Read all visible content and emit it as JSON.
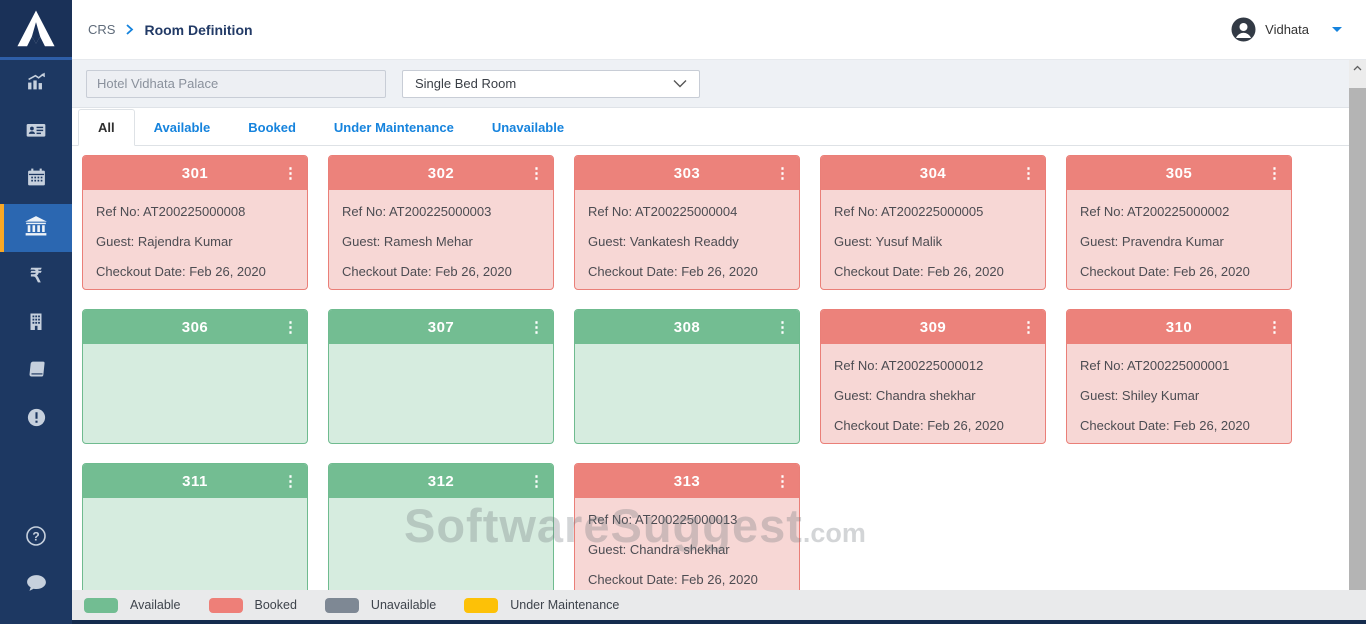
{
  "app": {
    "user_name": "Vidhata"
  },
  "breadcrumb": {
    "root": "CRS",
    "current": "Room Definition"
  },
  "filters": {
    "hotel_placeholder": "Hotel Vidhata Palace",
    "room_type_value": "Single Bed Room"
  },
  "tabs": [
    {
      "label": "All",
      "active": true
    },
    {
      "label": "Available",
      "active": false
    },
    {
      "label": "Booked",
      "active": false
    },
    {
      "label": "Under Maintenance",
      "active": false
    },
    {
      "label": "Unavailable",
      "active": false
    }
  ],
  "sidebar": {
    "items": [
      {
        "name": "dashboard",
        "icon": "analytics-icon",
        "active": false
      },
      {
        "name": "contacts",
        "icon": "id-card-icon",
        "active": false
      },
      {
        "name": "calendar",
        "icon": "calendar-icon",
        "active": false
      },
      {
        "name": "rooms",
        "icon": "bank-icon",
        "active": true
      },
      {
        "name": "payments",
        "icon": "rupee-icon",
        "active": false
      },
      {
        "name": "property",
        "icon": "building-icon",
        "active": false
      },
      {
        "name": "ledger",
        "icon": "book-icon",
        "active": false
      },
      {
        "name": "alerts",
        "icon": "alert-icon",
        "active": false
      }
    ],
    "bottom_items": [
      {
        "name": "help",
        "icon": "help-icon"
      },
      {
        "name": "chat",
        "icon": "chat-icon"
      }
    ]
  },
  "rooms": [
    {
      "number": "301",
      "status": "booked",
      "ref": "Ref No: AT200225000008",
      "guest": "Guest: Rajendra Kumar",
      "checkout": "Checkout Date: Feb 26, 2020"
    },
    {
      "number": "302",
      "status": "booked",
      "ref": "Ref No: AT200225000003",
      "guest": "Guest: Ramesh Mehar",
      "checkout": "Checkout Date: Feb 26, 2020"
    },
    {
      "number": "303",
      "status": "booked",
      "ref": "Ref No: AT200225000004",
      "guest": "Guest: Vankatesh Readdy",
      "checkout": "Checkout Date: Feb 26, 2020"
    },
    {
      "number": "304",
      "status": "booked",
      "ref": "Ref No: AT200225000005",
      "guest": "Guest: Yusuf Malik",
      "checkout": "Checkout Date: Feb 26, 2020"
    },
    {
      "number": "305",
      "status": "booked",
      "ref": "Ref No: AT200225000002",
      "guest": "Guest: Pravendra Kumar",
      "checkout": "Checkout Date: Feb 26, 2020"
    },
    {
      "number": "306",
      "status": "available"
    },
    {
      "number": "307",
      "status": "available"
    },
    {
      "number": "308",
      "status": "available"
    },
    {
      "number": "309",
      "status": "booked",
      "ref": "Ref No: AT200225000012",
      "guest": "Guest: Chandra shekhar",
      "checkout": "Checkout Date: Feb 26, 2020"
    },
    {
      "number": "310",
      "status": "booked",
      "ref": "Ref No: AT200225000001",
      "guest": "Guest: Shiley Kumar",
      "checkout": "Checkout Date: Feb 26, 2020"
    },
    {
      "number": "311",
      "status": "available"
    },
    {
      "number": "312",
      "status": "available"
    },
    {
      "number": "313",
      "status": "booked",
      "ref": "Ref No: AT200225000013",
      "guest": "Guest: Chandra shekhar",
      "checkout": "Checkout Date: Feb 26, 2020"
    }
  ],
  "legend": [
    {
      "label": "Available",
      "color": "#72bd92"
    },
    {
      "label": "Booked",
      "color": "#ee7f78"
    },
    {
      "label": "Unavailable",
      "color": "#7e8894"
    },
    {
      "label": "Under Maintenance",
      "color": "#fdc107"
    }
  ],
  "watermark": {
    "main": "SoftwareSuggest",
    "suffix": ".com"
  },
  "colors": {
    "sidebar": "#1d3862",
    "active_item": "#2b67b1",
    "accent_orange": "#f9a825",
    "tab_blue": "#1583dd",
    "booked_header": "#ec827b",
    "booked_body": "#f7d7d5",
    "available_header": "#73bd92",
    "available_body": "#d6ecdf"
  }
}
